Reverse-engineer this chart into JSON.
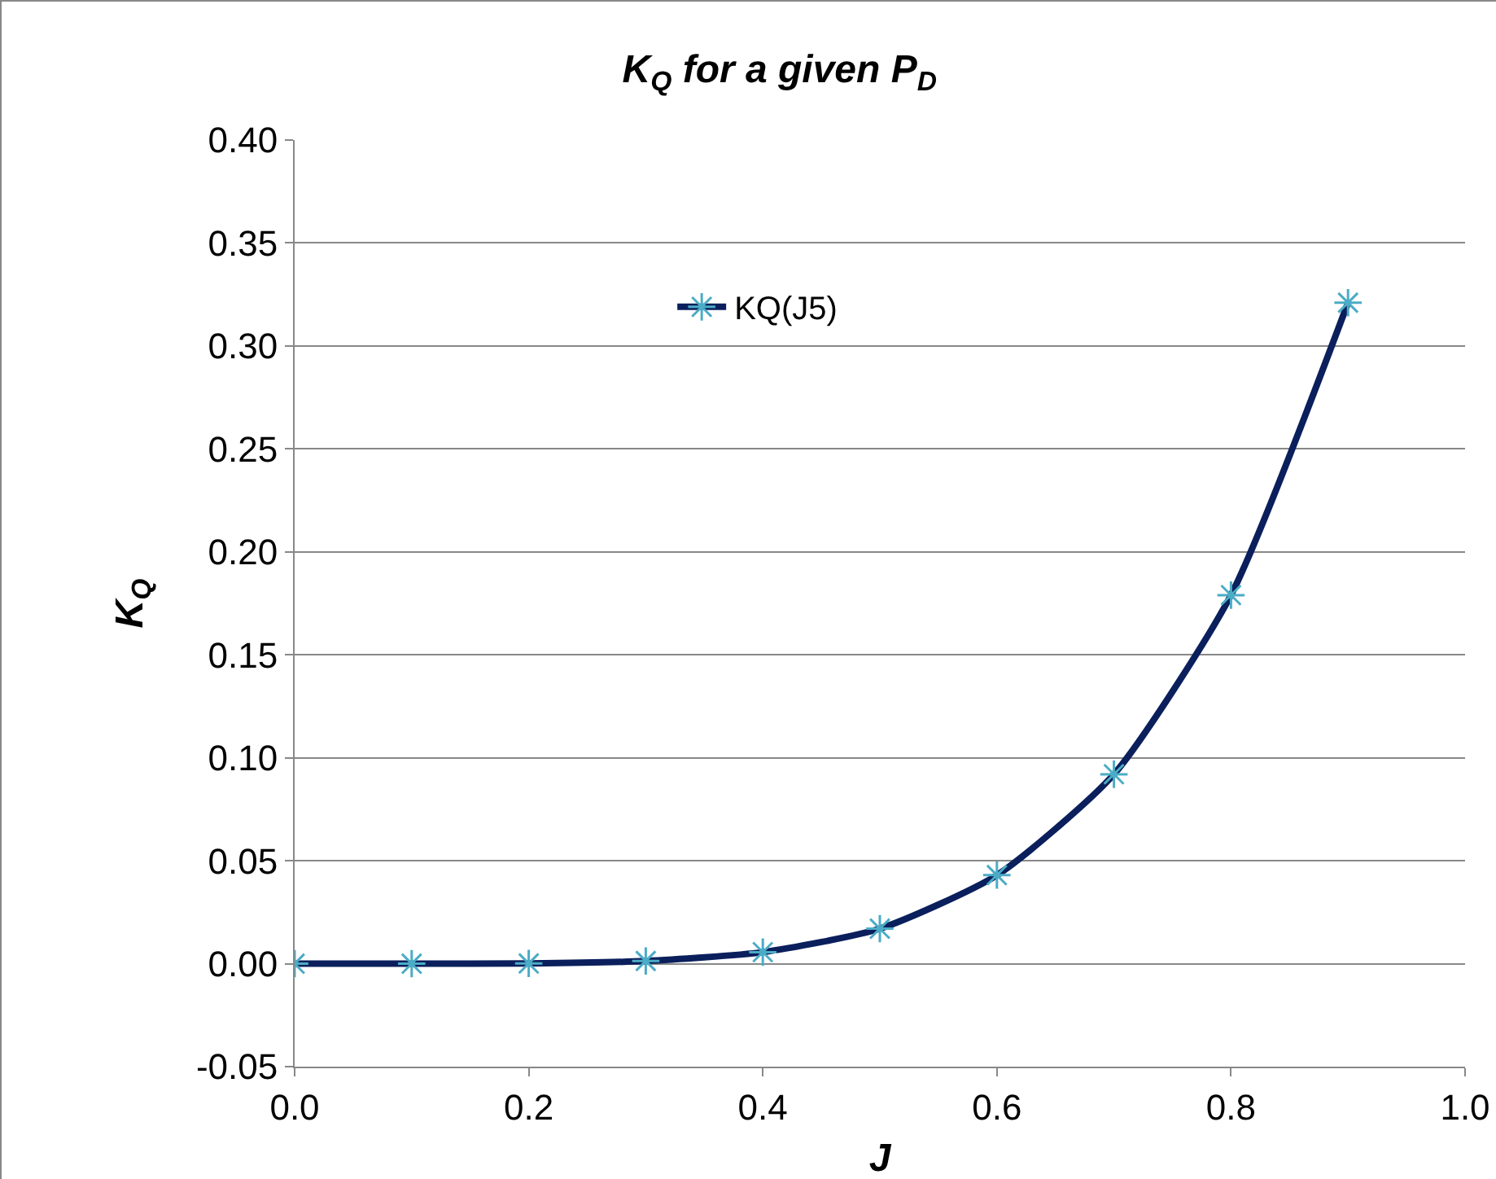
{
  "chart_data": {
    "type": "line",
    "title": "K$_{Q}$ for a given P$_{D}$",
    "xlabel": "J",
    "ylabel": "K$_{Q}$",
    "x": [
      0,
      0.1,
      0.2,
      0.3,
      0.4,
      0.5,
      0.6,
      0.7,
      0.8,
      0.9
    ],
    "series": [
      {
        "name": "KQ(J5)",
        "color": "#0a1f5c",
        "colors": [
          "#4bacc6",
          "#4bacc6",
          "#4bacc6",
          "#4bacc6",
          "#4bacc6",
          "#4bacc6",
          "#4bacc6",
          "#4bacc6",
          "#4bacc6",
          "#4bacc6"
        ],
        "values": [
          0,
          0,
          0.0001,
          0.0013,
          0.0056,
          0.017,
          0.043,
          0.092,
          0.179,
          0.321
        ]
      }
    ],
    "xlim": [
      0,
      1
    ],
    "xticks": [
      {
        "value": 0,
        "label": "0.0"
      },
      {
        "value": 0.2,
        "label": "0.2"
      },
      {
        "value": 0.4,
        "label": "0.4"
      },
      {
        "value": 0.6,
        "label": "0.6"
      },
      {
        "value": 0.8,
        "label": "0.8"
      },
      {
        "value": 1,
        "label": "1.0"
      }
    ],
    "ylim": [
      -0.05,
      0.4
    ],
    "yticks": [
      {
        "value": -0.05,
        "label": "-0.05"
      },
      {
        "value": 0,
        "label": "0.00"
      },
      {
        "value": 0.05,
        "label": "0.05"
      },
      {
        "value": 0.1,
        "label": "0.10"
      },
      {
        "value": 0.15,
        "label": "0.15"
      },
      {
        "value": 0.2,
        "label": "0.20"
      },
      {
        "value": 0.25,
        "label": "0.25"
      },
      {
        "value": 0.3,
        "label": "0.30"
      },
      {
        "value": 0.35,
        "label": "0.35"
      },
      {
        "value": 0.4,
        "label": "0.40"
      }
    ],
    "grid": "y",
    "legend": "top",
    "marker": "cross",
    "line_style": "solid"
  }
}
